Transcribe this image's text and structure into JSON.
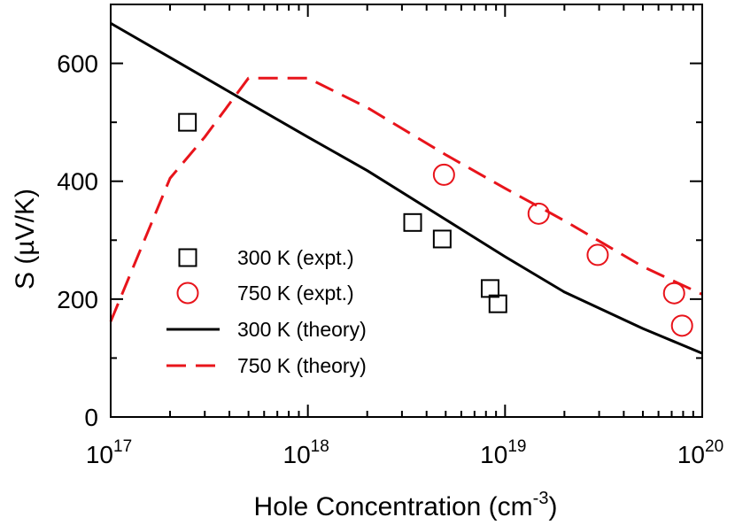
{
  "chart_data": {
    "type": "scatter",
    "title": "",
    "xlabel": "Hole Concentration (cm",
    "xlabel_sup": "-3",
    "xlabel_close": ")",
    "ylabel": "S (µV/K)",
    "xscale": "log",
    "xlim": [
      1e+17,
      1e+20
    ],
    "ylim": [
      0,
      700
    ],
    "x_ticks": [
      {
        "value": 1e+17,
        "base": "10",
        "exp": "17"
      },
      {
        "value": 1e+18,
        "base": "10",
        "exp": "18"
      },
      {
        "value": 1e+19,
        "base": "10",
        "exp": "19"
      },
      {
        "value": 1e+20,
        "base": "10",
        "exp": "20"
      }
    ],
    "y_ticks": [
      {
        "value": 0,
        "label": "0"
      },
      {
        "value": 200,
        "label": "200"
      },
      {
        "value": 400,
        "label": "400"
      },
      {
        "value": 600,
        "label": "600"
      }
    ],
    "y_minor_step": 100,
    "legend_position": "lower-left",
    "series": [
      {
        "name": "300 K (expt.)",
        "kind": "markers",
        "marker": "square",
        "color": "#000000",
        "points": [
          [
            2.45e+17,
            500
          ],
          [
            3.4e+18,
            330
          ],
          [
            4.8e+18,
            302
          ],
          [
            8.4e+18,
            218
          ],
          [
            9.2e+18,
            192
          ]
        ]
      },
      {
        "name": "750 K (expt.)",
        "kind": "markers",
        "marker": "circle",
        "color": "#e8141b",
        "points": [
          [
            4.9e+18,
            411
          ],
          [
            1.48e+19,
            345
          ],
          [
            2.95e+19,
            275
          ],
          [
            7.2e+19,
            210
          ],
          [
            7.9e+19,
            155
          ]
        ]
      },
      {
        "name": "300 K (theory)",
        "kind": "line",
        "dash": "solid",
        "color": "#000000",
        "points": [
          [
            1e+17,
            668
          ],
          [
            2e+17,
            610
          ],
          [
            5e+17,
            533
          ],
          [
            1e+18,
            475
          ],
          [
            2e+18,
            418
          ],
          [
            5e+18,
            335
          ],
          [
            1e+19,
            272
          ],
          [
            2e+19,
            212
          ],
          [
            5e+19,
            150
          ],
          [
            1e+20,
            108
          ]
        ]
      },
      {
        "name": "750 K (theory)",
        "kind": "line",
        "dash": "dashed",
        "color": "#e8141b",
        "points": [
          [
            1e+17,
            162
          ],
          [
            2e+17,
            405
          ],
          [
            3e+17,
            475
          ],
          [
            5e+17,
            575
          ],
          [
            1e+18,
            575
          ],
          [
            2e+18,
            525
          ],
          [
            5e+18,
            445
          ],
          [
            1e+19,
            388
          ],
          [
            2e+19,
            333
          ],
          [
            5e+19,
            255
          ],
          [
            1e+20,
            208
          ]
        ]
      }
    ]
  }
}
